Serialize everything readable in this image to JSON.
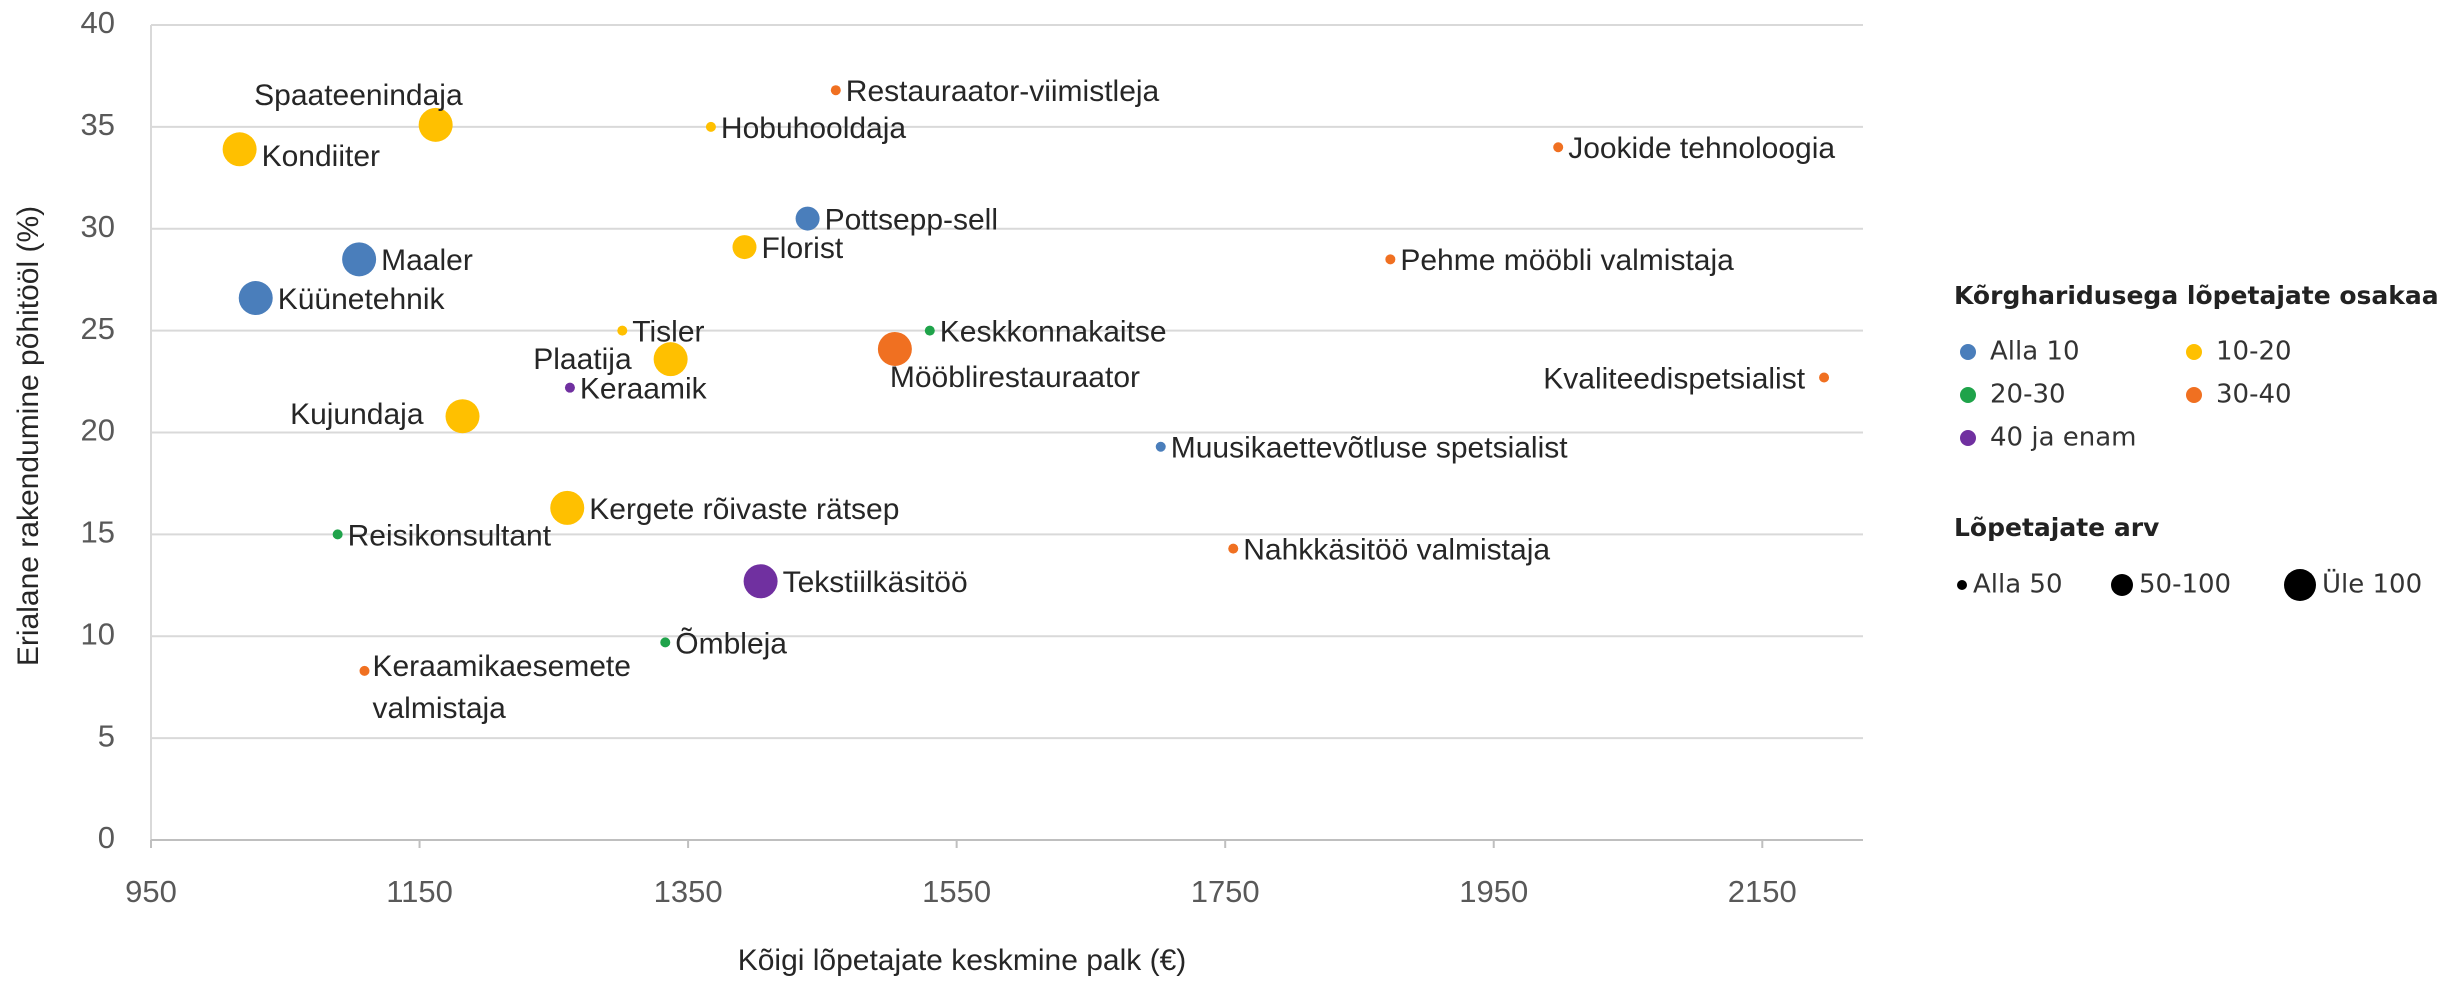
{
  "chart_data": {
    "type": "bubble",
    "x_label": "Kõigi lõpetajate keskmine palk (€)",
    "y_label": "Erialane rakendumine põhitööl (%)",
    "xlim": [
      950,
      2225
    ],
    "xticks": [
      950,
      1150,
      1350,
      1550,
      1750,
      1950,
      2150
    ],
    "ylim": [
      0,
      40
    ],
    "yticks": [
      0,
      5,
      10,
      15,
      20,
      25,
      30,
      35,
      40
    ],
    "grid": true,
    "legend_title": "Kõrgharidusega lõpetajate osakaal",
    "size_legend": {
      "title": "Lõpetajate arv",
      "items": [
        "Alla 50",
        "50-100",
        "Üle 100"
      ]
    },
    "series": [
      {
        "name": "Alla 10",
        "color": "#4a7ebb",
        "labels": [
          "Maaler",
          "Küünetehnik",
          "Pottsepp-sell",
          "Muusikaettevõtluse spetsialist"
        ],
        "x": [
          1105,
          1028,
          1439,
          1702
        ],
        "values": [
          28.5,
          26.6,
          30.5,
          19.3
        ],
        "sizes": [
          "Üle 100",
          "Üle 100",
          "50-100",
          "Alla 50"
        ]
      },
      {
        "name": "10-20",
        "color": "#ffc000",
        "labels": [
          "Spaateenindaja",
          "Kondiiter",
          "Kujundaja",
          "Tisler",
          "Plaatija",
          "Kergete rõivaste rätsep",
          "Hobuhooldaja",
          "Florist"
        ],
        "x": [
          1162,
          1016,
          1182,
          1301,
          1337,
          1260,
          1367,
          1392
        ],
        "values": [
          35.1,
          33.9,
          20.8,
          25.0,
          23.6,
          16.3,
          35.0,
          29.1
        ],
        "sizes": [
          "Üle 100",
          "Üle 100",
          "Üle 100",
          "Alla 50",
          "Üle 100",
          "Üle 100",
          "Alla 50",
          "50-100"
        ]
      },
      {
        "name": "20-30",
        "color": "#1fa34a",
        "labels": [
          "Reisikonsultant",
          "Õmbleja",
          "Keskkonnakaitse"
        ],
        "x": [
          1089,
          1333,
          1530
        ],
        "values": [
          15.0,
          9.7,
          25.0
        ],
        "sizes": [
          "Alla 50",
          "Alla 50",
          "Alla 50"
        ]
      },
      {
        "name": "30-40",
        "color": "#f07021",
        "labels": [
          "Keraamikaesemete valmistaja",
          "Restauraator-viimistleja",
          "Mööblirestauraator",
          "Nahkkäsitöö valmistaja",
          "Pehme mööbli valmistaja",
          "Jookide tehnoloogia",
          "Kvaliteedispetsialist"
        ],
        "x": [
          1109,
          1460,
          1504,
          1756,
          1873,
          1998,
          2196
        ],
        "values": [
          8.3,
          36.8,
          24.1,
          14.3,
          28.5,
          34.0,
          22.7
        ],
        "sizes": [
          "Alla 50",
          "Alla 50",
          "Üle 100",
          "Alla 50",
          "Alla 50",
          "Alla 50",
          "Alla 50"
        ]
      },
      {
        "name": "40 ja enam",
        "color": "#7030a0",
        "labels": [
          "Keraamik",
          "Tekstiilkäsitöö"
        ],
        "x": [
          1262,
          1404
        ],
        "values": [
          22.2,
          12.7
        ],
        "sizes": [
          "Alla 50",
          "Üle 100"
        ]
      }
    ]
  }
}
